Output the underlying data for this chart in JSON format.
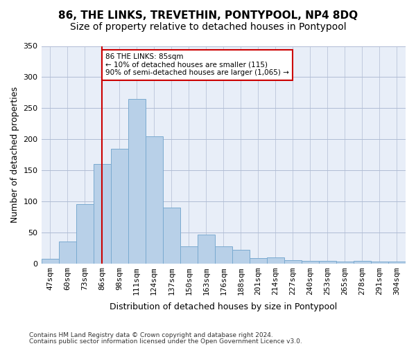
{
  "title": "86, THE LINKS, TREVETHIN, PONTYPOOL, NP4 8DQ",
  "subtitle": "Size of property relative to detached houses in Pontypool",
  "xlabel": "Distribution of detached houses by size in Pontypool",
  "ylabel": "Number of detached properties",
  "categories": [
    "47sqm",
    "60sqm",
    "73sqm",
    "86sqm",
    "98sqm",
    "111sqm",
    "124sqm",
    "137sqm",
    "150sqm",
    "163sqm",
    "176sqm",
    "188sqm",
    "201sqm",
    "214sqm",
    "227sqm",
    "240sqm",
    "253sqm",
    "265sqm",
    "278sqm",
    "291sqm",
    "304sqm"
  ],
  "values": [
    7,
    35,
    95,
    160,
    185,
    265,
    205,
    90,
    27,
    46,
    27,
    22,
    8,
    9,
    5,
    4,
    4,
    3,
    4,
    3,
    3
  ],
  "bar_color": "#b8d0e8",
  "bar_edge_color": "#7aaad0",
  "bar_width": 1.0,
  "vline_x": 3,
  "vline_color": "#cc0000",
  "annotation_text": "86 THE LINKS: 85sqm\n← 10% of detached houses are smaller (115)\n90% of semi-detached houses are larger (1,065) →",
  "annotation_box_color": "#ffffff",
  "annotation_box_edge_color": "#cc0000",
  "ylim": [
    0,
    350
  ],
  "yticks": [
    0,
    50,
    100,
    150,
    200,
    250,
    300,
    350
  ],
  "plot_bg_color": "#e8eef8",
  "footer_line1": "Contains HM Land Registry data © Crown copyright and database right 2024.",
  "footer_line2": "Contains public sector information licensed under the Open Government Licence v3.0.",
  "title_fontsize": 11,
  "subtitle_fontsize": 10,
  "xlabel_fontsize": 9,
  "ylabel_fontsize": 9,
  "tick_fontsize": 8
}
